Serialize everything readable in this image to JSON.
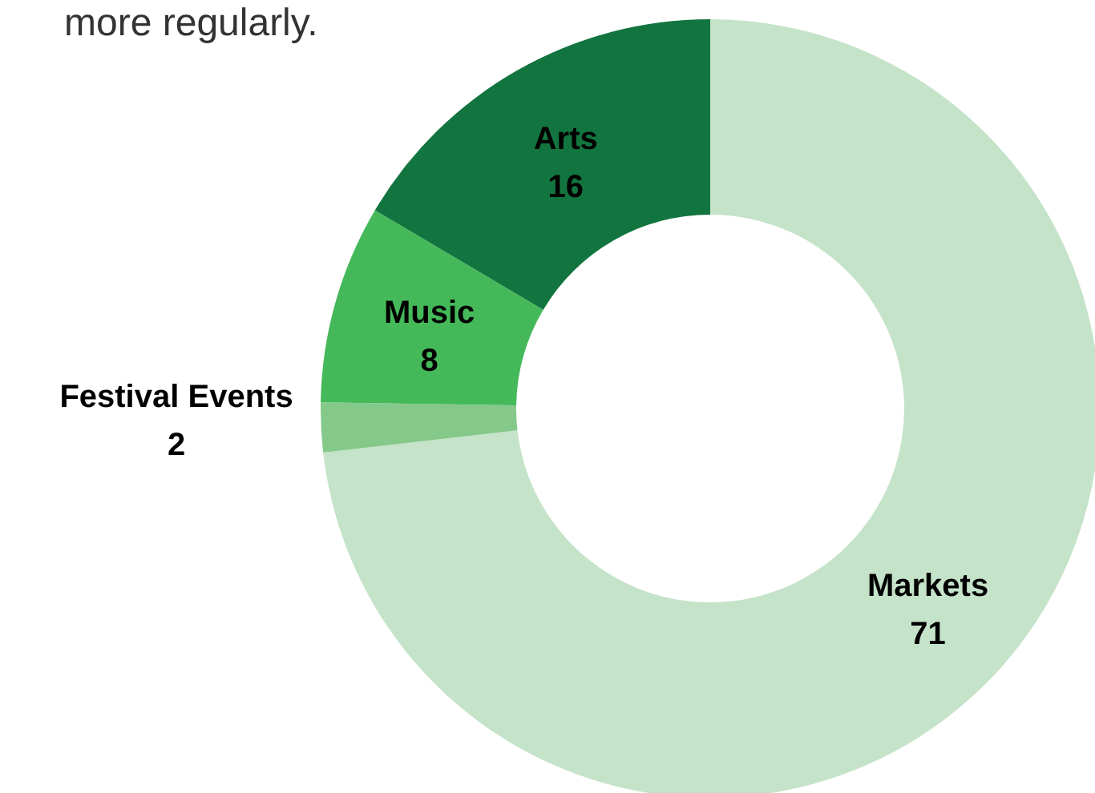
{
  "chart_data": {
    "type": "donut",
    "subtitle": "more regularly.",
    "categories": [
      "Markets",
      "Festival Events",
      "Music",
      "Arts"
    ],
    "values": [
      71,
      2,
      8,
      16
    ],
    "colors": [
      "#c5e3c9",
      "#85c98a",
      "#45b95a",
      "#12753f"
    ],
    "data_labels": true
  }
}
